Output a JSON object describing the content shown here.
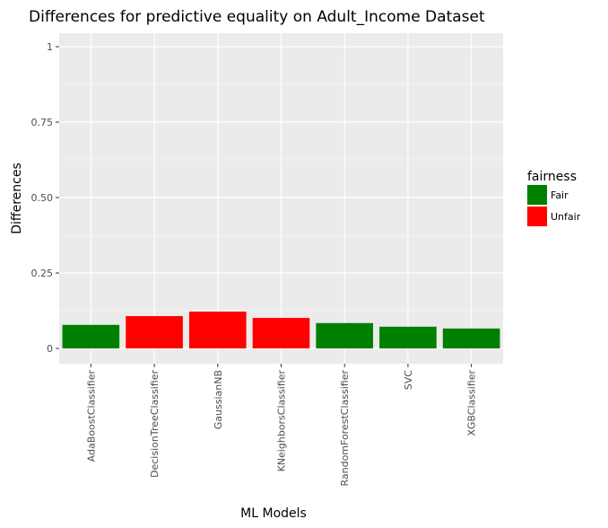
{
  "chart_data": {
    "type": "bar",
    "title": "Differences for predictive equality on Adult_Income Dataset",
    "xlabel": "ML Models",
    "ylabel": "Differences",
    "categories": [
      "AdaBoostClassifier",
      "DecisionTreeClassifier",
      "GaussianNB",
      "KNeighborsClassifier",
      "RandomForestClassifier",
      "SVC",
      "XGBClassifier"
    ],
    "values": [
      0.078,
      0.107,
      0.122,
      0.101,
      0.084,
      0.072,
      0.066
    ],
    "fairness": [
      "Fair",
      "Unfair",
      "Unfair",
      "Unfair",
      "Fair",
      "Fair",
      "Fair"
    ],
    "ylim": [
      0,
      1
    ],
    "yticks": [
      0,
      0.25,
      0.5,
      0.75,
      1
    ],
    "ytick_labels": [
      "0",
      "0.25",
      "0.50",
      "0.75",
      "1"
    ],
    "grid": true,
    "legend": {
      "title": "fairness",
      "position": "right",
      "entries": [
        {
          "label": "Fair",
          "color": "#008000"
        },
        {
          "label": "Unfair",
          "color": "#ff0000"
        }
      ]
    },
    "colors": {
      "panel_background": "#ebebeb",
      "gridline": "#ffffff"
    }
  }
}
